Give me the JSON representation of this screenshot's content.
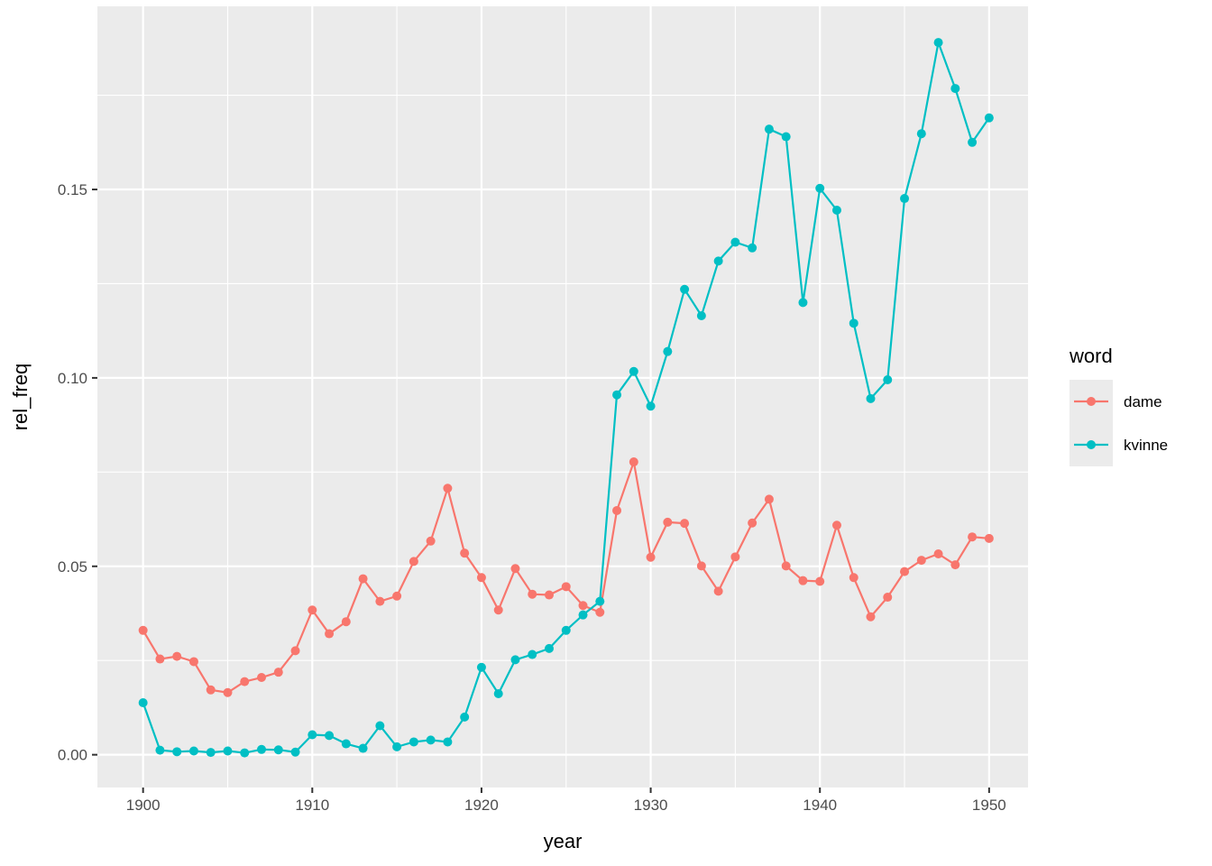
{
  "chart_data": {
    "type": "line",
    "xlabel": "year",
    "ylabel": "rel_freq",
    "xlim": [
      1897.3,
      1952.3
    ],
    "ylim": [
      -0.0087,
      0.1986
    ],
    "x_ticks": [
      1900,
      1910,
      1920,
      1930,
      1940,
      1950
    ],
    "x_tick_labels": [
      "1900",
      "1910",
      "1920",
      "1930",
      "1940",
      "1950"
    ],
    "y_ticks": [
      0.0,
      0.05,
      0.1,
      0.15
    ],
    "y_tick_labels": [
      "0.00",
      "0.05",
      "0.10",
      "0.15"
    ],
    "grid": true,
    "legend": {
      "title": "word",
      "position": "right"
    },
    "x": [
      1900,
      1901,
      1902,
      1903,
      1904,
      1905,
      1906,
      1907,
      1908,
      1909,
      1910,
      1911,
      1912,
      1913,
      1914,
      1915,
      1916,
      1917,
      1918,
      1919,
      1920,
      1921,
      1922,
      1923,
      1924,
      1925,
      1926,
      1927,
      1928,
      1929,
      1930,
      1931,
      1932,
      1933,
      1934,
      1935,
      1936,
      1937,
      1938,
      1939,
      1940,
      1941,
      1942,
      1943,
      1944,
      1945,
      1946,
      1947,
      1948,
      1949,
      1950
    ],
    "series": [
      {
        "name": "dame",
        "color": "#F8766D",
        "values": [
          0.033,
          0.0254,
          0.0261,
          0.0247,
          0.0172,
          0.0165,
          0.0194,
          0.0205,
          0.0219,
          0.0276,
          0.0384,
          0.0321,
          0.0353,
          0.0467,
          0.0407,
          0.0421,
          0.0513,
          0.0567,
          0.0707,
          0.0535,
          0.047,
          0.0384,
          0.0494,
          0.0426,
          0.0424,
          0.0446,
          0.0396,
          0.0378,
          0.0648,
          0.0777,
          0.0524,
          0.0617,
          0.0614,
          0.0501,
          0.0434,
          0.0525,
          0.0615,
          0.0678,
          0.0501,
          0.0462,
          0.046,
          0.0609,
          0.047,
          0.0366,
          0.0418,
          0.0486,
          0.0516,
          0.0533,
          0.0504,
          0.0578,
          0.0574
        ]
      },
      {
        "name": "kvinne",
        "color": "#00BFC4",
        "values": [
          0.0138,
          0.0012,
          0.0008,
          0.001,
          0.0006,
          0.001,
          0.0005,
          0.0014,
          0.0013,
          0.0007,
          0.0053,
          0.0051,
          0.0029,
          0.0017,
          0.0077,
          0.0021,
          0.0034,
          0.0039,
          0.0034,
          0.01,
          0.0232,
          0.0162,
          0.0252,
          0.0266,
          0.0282,
          0.033,
          0.0371,
          0.0407,
          0.0955,
          0.1017,
          0.0925,
          0.107,
          0.1235,
          0.1165,
          0.131,
          0.136,
          0.1345,
          0.166,
          0.164,
          0.12,
          0.1503,
          0.1445,
          0.1145,
          0.0945,
          0.0995,
          0.1476,
          0.1648,
          0.189,
          0.1768,
          0.1625,
          0.169
        ]
      }
    ]
  }
}
